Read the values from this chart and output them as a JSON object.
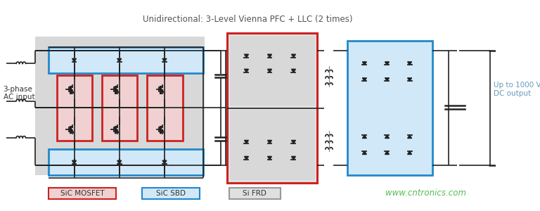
{
  "title": "Unidirectional: 3-Level Vienna PFC + LLC (2 times)",
  "title_color": "#555555",
  "bg_color": "#ffffff",
  "label_3phase_1": "3-phase",
  "label_3phase_2": "AC input",
  "label_dc": "Up to 1000 V\nDC output",
  "label_dc_color": "#6699bb",
  "legend_items": [
    {
      "label": "SiC MOSFET",
      "edge_color": "#cc2222",
      "face_color": "#f0d0d0"
    },
    {
      "label": "SiC SBD",
      "edge_color": "#2288cc",
      "face_color": "#d0e8f8"
    },
    {
      "label": "Si FRD",
      "edge_color": "#999999",
      "face_color": "#e0e0e0"
    }
  ],
  "website": "www.cntronics.com",
  "website_color": "#55bb55",
  "gray_fill": "#cccccc",
  "gray_fill2": "#d8d8d8",
  "black": "#111111",
  "dark": "#222222"
}
